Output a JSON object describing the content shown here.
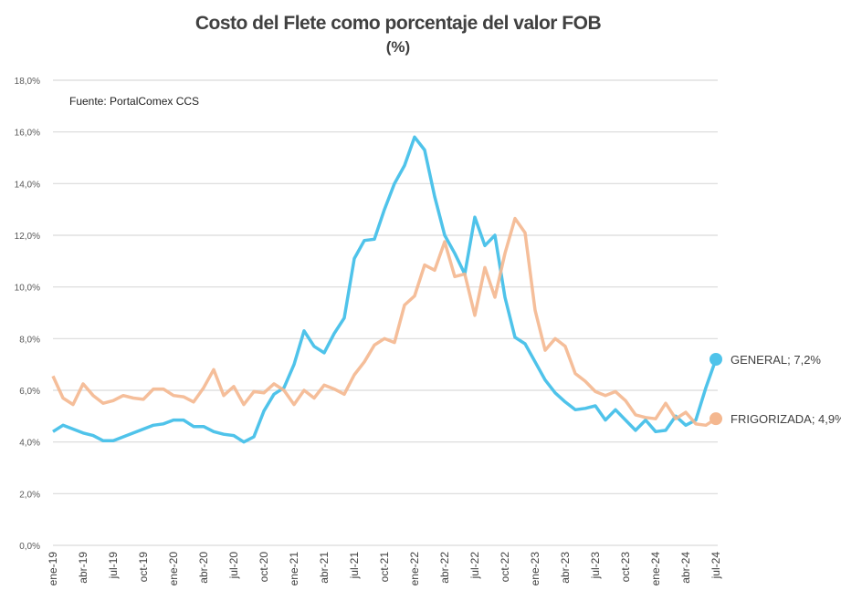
{
  "chart_data": {
    "type": "line",
    "title": "Costo del Flete como porcentaje del valor FOB",
    "subtitle": "(%)",
    "source_note": "Fuente: PortalComex CCS",
    "xlabel": "",
    "ylabel": "",
    "ylim": [
      0,
      18
    ],
    "y_ticks": [
      "0,0%",
      "2,0%",
      "4,0%",
      "6,0%",
      "8,0%",
      "10,0%",
      "12,0%",
      "14,0%",
      "16,0%",
      "18,0%"
    ],
    "x_tick_labels": [
      "ene-19",
      "abr-19",
      "jul-19",
      "oct-19",
      "ene-20",
      "abr-20",
      "jul-20",
      "oct-20",
      "ene-21",
      "abr-21",
      "jul-21",
      "oct-21",
      "ene-22",
      "abr-22",
      "jul-22",
      "oct-22",
      "ene-23",
      "abr-23",
      "jul-23",
      "oct-23",
      "ene-24",
      "abr-24",
      "jul-24"
    ],
    "x_start": "ene-19",
    "x_end": "jul-24",
    "x_frequency": "monthly",
    "grid": true,
    "legend": "end-of-line labels",
    "series": [
      {
        "name": "GENERAL",
        "end_label": "GENERAL; 7,2%",
        "color": "#4fc3ea",
        "values": [
          4.4,
          4.65,
          4.5,
          4.35,
          4.25,
          4.05,
          4.05,
          4.2,
          4.35,
          4.5,
          4.65,
          4.7,
          4.85,
          4.85,
          4.6,
          4.6,
          4.4,
          4.3,
          4.25,
          4.0,
          4.2,
          5.2,
          5.85,
          6.1,
          7.0,
          8.3,
          7.7,
          7.45,
          8.2,
          8.8,
          11.1,
          11.8,
          11.85,
          13.0,
          14.0,
          14.7,
          15.8,
          15.3,
          13.5,
          12.0,
          11.3,
          10.5,
          12.7,
          11.6,
          12.0,
          9.6,
          8.05,
          7.8,
          7.1,
          6.4,
          5.9,
          5.55,
          5.25,
          5.3,
          5.4,
          4.85,
          5.25,
          4.85,
          4.45,
          4.85,
          4.4,
          4.45,
          5.0,
          4.65,
          4.85,
          6.1,
          7.2
        ]
      },
      {
        "name": "FRIGORIZADA",
        "end_label": "FRIGORIZADA; 4,9%",
        "color": "#f4b78f",
        "values": [
          6.55,
          5.7,
          5.45,
          6.25,
          5.8,
          5.5,
          5.6,
          5.8,
          5.7,
          5.65,
          6.05,
          6.05,
          5.8,
          5.75,
          5.55,
          6.1,
          6.8,
          5.8,
          6.15,
          5.45,
          5.95,
          5.9,
          6.25,
          6.0,
          5.45,
          6.0,
          5.7,
          6.2,
          6.05,
          5.85,
          6.6,
          7.1,
          7.75,
          8.0,
          7.85,
          9.3,
          9.65,
          10.85,
          10.65,
          11.75,
          10.4,
          10.5,
          8.9,
          10.75,
          9.6,
          11.3,
          12.65,
          12.1,
          9.1,
          7.55,
          8.0,
          7.7,
          6.65,
          6.35,
          5.95,
          5.8,
          5.95,
          5.6,
          5.05,
          4.95,
          4.9,
          5.5,
          4.9,
          5.15,
          4.7,
          4.65,
          4.9
        ]
      }
    ]
  }
}
